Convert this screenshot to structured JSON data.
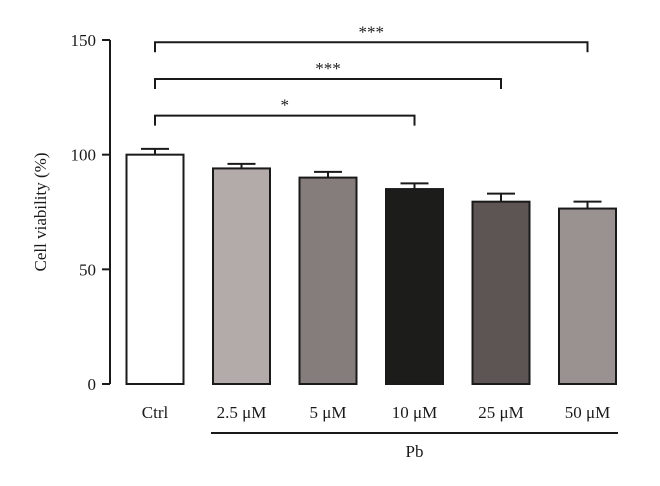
{
  "chart_data": {
    "type": "bar",
    "categories": [
      "Ctrl",
      "2.5 μM",
      "5 μM",
      "10 μM",
      "25 μM",
      "50 μM"
    ],
    "values": [
      100,
      94,
      90,
      85,
      79.5,
      76.5
    ],
    "errors": [
      2.5,
      2.0,
      2.5,
      2.5,
      3.5,
      3.0
    ],
    "bar_colors": [
      "#ffffff",
      "#b3aaaa",
      "#847d7b",
      "#1c1c1a",
      "#5d5553",
      "#9a9290"
    ],
    "ylabel": "Cell viability (%)",
    "ylim": [
      0,
      150
    ],
    "yticks": [
      0,
      50,
      100,
      150
    ],
    "grid": false,
    "group_label": "Pb",
    "group_categories": [
      "2.5 μM",
      "5 μM",
      "10 μM",
      "25 μM",
      "50 μM"
    ],
    "significance": [
      {
        "from": "Ctrl",
        "to": "10 μM",
        "label": "*",
        "level": 117
      },
      {
        "from": "Ctrl",
        "to": "25 μM",
        "label": "***",
        "level": 133
      },
      {
        "from": "Ctrl",
        "to": "50 μM",
        "label": "***",
        "level": 149
      }
    ]
  }
}
